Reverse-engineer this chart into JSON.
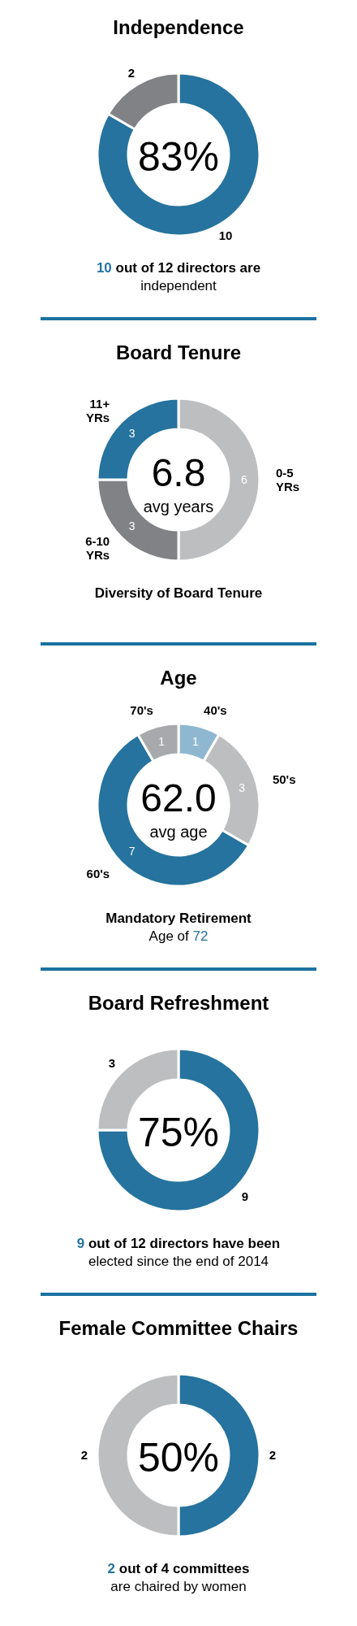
{
  "chart_data": [
    {
      "type": "donut",
      "title": "Independence",
      "categories": [
        null,
        null
      ],
      "values": [
        10,
        2
      ],
      "colors": [
        "#25739e",
        "#808285"
      ],
      "data_labels": true,
      "annotations": [
        "83%",
        "10 out of 12 directors are\nindependent"
      ]
    },
    {
      "type": "donut",
      "title": "Board Tenure",
      "categories": [
        "0-5 YRs",
        "6-10 YRs",
        "11+ YRs"
      ],
      "values": [
        6,
        3,
        3
      ],
      "colors": [
        "#bcbec0",
        "#808285",
        "#25739e"
      ],
      "data_labels": true,
      "annotations": [
        "6.8",
        "avg years",
        "Diversity of Board Tenure"
      ]
    },
    {
      "type": "donut",
      "title": "Age",
      "categories": [
        "40's",
        "50's",
        "60's",
        "70's"
      ],
      "values": [
        1,
        3,
        7,
        1
      ],
      "colors": [
        "#8fb8d0",
        "#bcbec0",
        "#25739e",
        "#a7a9ac"
      ],
      "data_labels": true,
      "annotations": [
        "62.0",
        "avg age",
        "Mandatory Retirement\nAge of 72"
      ]
    },
    {
      "type": "donut",
      "title": "Board Refreshment",
      "categories": [
        null,
        null
      ],
      "values": [
        9,
        3
      ],
      "colors": [
        "#25739e",
        "#bcbec0"
      ],
      "data_labels": true,
      "annotations": [
        "75%",
        "9 out of 12 directors have been\nelected since the end of 2014"
      ]
    },
    {
      "type": "donut",
      "title": "Female Committee Chairs",
      "categories": [
        null,
        null
      ],
      "values": [
        2,
        2
      ],
      "colors": [
        "#25739e",
        "#bcbec0"
      ],
      "data_labels": true,
      "annotations": [
        "50%",
        "2 out of 4 committees\nare chaired by women"
      ]
    }
  ]
}
